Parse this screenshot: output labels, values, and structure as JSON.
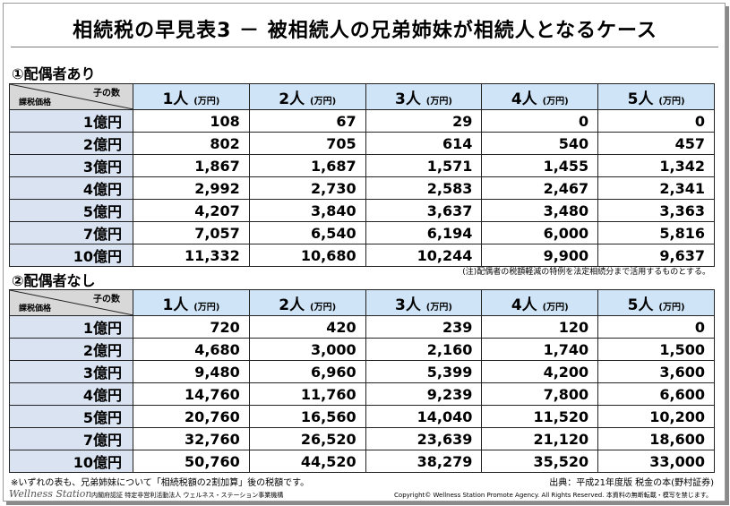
{
  "title": "相続税の早見表3 － 被相続人の兄弟姉妹が相続人となるケース",
  "corner": {
    "children_label": "子の数",
    "tax_base_label": "課税価格"
  },
  "column_headers": [
    {
      "num": "1人",
      "unit": "(万円)"
    },
    {
      "num": "2人",
      "unit": "(万円)"
    },
    {
      "num": "3人",
      "unit": "(万円)"
    },
    {
      "num": "4人",
      "unit": "(万円)"
    },
    {
      "num": "5人",
      "unit": "(万円)"
    }
  ],
  "tables": [
    {
      "heading": "①配偶者あり",
      "rows": [
        {
          "label": "1億円",
          "values": [
            "108",
            "67",
            "29",
            "0",
            "0"
          ]
        },
        {
          "label": "2億円",
          "values": [
            "802",
            "705",
            "614",
            "540",
            "457"
          ]
        },
        {
          "label": "3億円",
          "values": [
            "1,867",
            "1,687",
            "1,571",
            "1,455",
            "1,342"
          ]
        },
        {
          "label": "4億円",
          "values": [
            "2,992",
            "2,730",
            "2,583",
            "2,467",
            "2,341"
          ]
        },
        {
          "label": "5億円",
          "values": [
            "4,207",
            "3,840",
            "3,637",
            "3,480",
            "3,363"
          ]
        },
        {
          "label": "7億円",
          "values": [
            "7,057",
            "6,540",
            "6,194",
            "6,000",
            "5,816"
          ]
        },
        {
          "label": "10億円",
          "values": [
            "11,332",
            "10,680",
            "10,244",
            "9,900",
            "9,637"
          ]
        }
      ]
    },
    {
      "heading": "②配偶者なし",
      "rows": [
        {
          "label": "1億円",
          "values": [
            "720",
            "420",
            "239",
            "120",
            "0"
          ]
        },
        {
          "label": "2億円",
          "values": [
            "4,680",
            "3,000",
            "2,160",
            "1,740",
            "1,500"
          ]
        },
        {
          "label": "3億円",
          "values": [
            "9,480",
            "6,960",
            "5,399",
            "4,200",
            "3,600"
          ]
        },
        {
          "label": "4億円",
          "values": [
            "14,760",
            "11,760",
            "9,239",
            "7,800",
            "6,600"
          ]
        },
        {
          "label": "5億円",
          "values": [
            "20,760",
            "16,560",
            "14,040",
            "11,520",
            "10,200"
          ]
        },
        {
          "label": "7億円",
          "values": [
            "32,760",
            "26,520",
            "23,639",
            "21,120",
            "18,600"
          ]
        },
        {
          "label": "10億円",
          "values": [
            "50,760",
            "44,520",
            "38,279",
            "35,520",
            "33,000"
          ]
        }
      ]
    }
  ],
  "note_spouse": "(注)配偶者の税額軽減の特例を法定相続分まで活用するものとする。",
  "footnote": "※いずれの表も、兄弟姉妹について「相続税額の2割加算」後の税額です。",
  "source": "出典：平成21年度版 税金の本(野村証券)",
  "logo": "Wellness Station",
  "organization": "内閣府認証 特定非営利活動法人 ウェルネス・ステーション事業機構",
  "copyright": "Copyright© Wellness Station Promote Agency. All Rights Reserved. 本資料の無断転載・模写を禁じます。"
}
